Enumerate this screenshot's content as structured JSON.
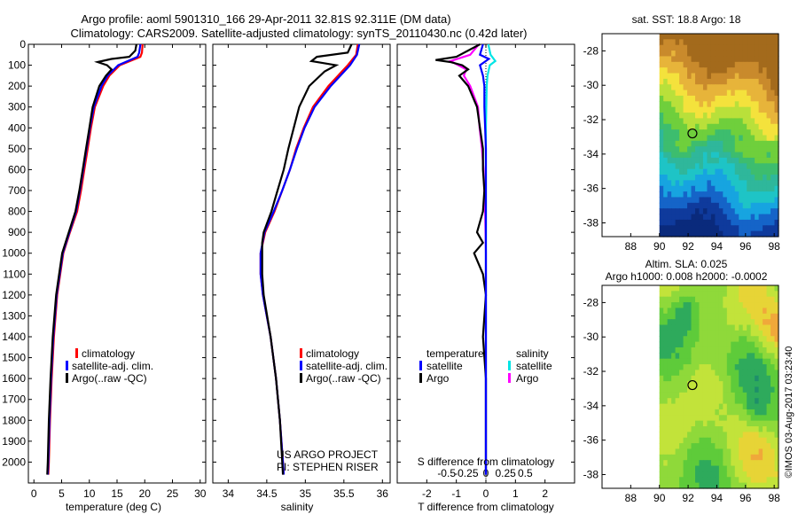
{
  "header": {
    "title_line1": "Argo profile: aoml 5901310_166 29-Apr-2011 32.81S 92.311E (DM data)",
    "title_line2": "Climatology: CARS2009. Satellite-adjusted climatology: synTS_20110430.nc (0.42d later)"
  },
  "colors": {
    "climatology": "#ff0000",
    "satellite": "#0000ff",
    "argo": "#000000",
    "salinity_satellite": "#00e5e5",
    "salinity_argo": "#ff00ff"
  },
  "chart_data": [
    {
      "id": "temperature",
      "type": "line",
      "xlabel": "temperature (deg C)",
      "xlim": [
        -1,
        31
      ],
      "xticks": [
        0,
        5,
        10,
        15,
        20,
        25,
        30
      ],
      "ylim": [
        2100,
        0
      ],
      "yticks": [
        0,
        100,
        200,
        300,
        400,
        500,
        600,
        700,
        800,
        900,
        1000,
        1100,
        1200,
        1300,
        1400,
        1500,
        1600,
        1700,
        1800,
        1900,
        2000
      ],
      "legend": [
        "climatology",
        "satellite-adj. clim.",
        "Argo(..raw -QC)"
      ],
      "series": [
        {
          "name": "climatology",
          "depth": [
            0,
            40,
            60,
            100,
            150,
            200,
            300,
            400,
            500,
            600,
            700,
            800,
            900,
            1000,
            1200,
            1400,
            1600,
            1800,
            2000,
            2060
          ],
          "values": [
            19.6,
            19.5,
            19.2,
            15.5,
            13.6,
            12.5,
            11.0,
            10.3,
            9.7,
            9.1,
            8.5,
            7.8,
            6.5,
            5.3,
            4.2,
            3.6,
            3.2,
            2.9,
            2.7,
            2.6
          ]
        },
        {
          "name": "satellite-adj. clim.",
          "depth": [
            0,
            40,
            60,
            100,
            150,
            200,
            300,
            400,
            500,
            600,
            700,
            800,
            900,
            1000,
            1200,
            1400,
            1600,
            1800,
            2000,
            2060
          ],
          "values": [
            19.2,
            19.0,
            18.7,
            15.2,
            13.3,
            12.2,
            10.8,
            10.1,
            9.5,
            8.9,
            8.3,
            7.6,
            6.4,
            5.2,
            4.1,
            3.5,
            3.1,
            2.8,
            2.6,
            2.5
          ]
        },
        {
          "name": "Argo(..raw -QC)",
          "depth": [
            0,
            30,
            60,
            70,
            85,
            100,
            120,
            150,
            200,
            300,
            400,
            500,
            600,
            700,
            800,
            900,
            1000,
            1200,
            1400,
            1600,
            1800,
            2000,
            2060
          ],
          "values": [
            18.5,
            18.3,
            17.2,
            14.0,
            11.5,
            13.2,
            14.0,
            13.0,
            11.8,
            10.6,
            10.0,
            9.4,
            8.8,
            8.2,
            7.5,
            6.3,
            5.1,
            4.0,
            3.4,
            3.0,
            2.7,
            2.5,
            2.4
          ]
        }
      ]
    },
    {
      "id": "salinity",
      "type": "line",
      "xlabel": "salinity",
      "xlim": [
        33.8,
        36.1
      ],
      "xticks": [
        34,
        34.5,
        35,
        35.5,
        36
      ],
      "xtick_labels": [
        "34",
        "34.5",
        "35",
        "35.5",
        "36"
      ],
      "ylim": [
        2100,
        0
      ],
      "legend": [
        "climatology",
        "satellite-adj. clim.",
        "Argo(..raw -QC)"
      ],
      "series": [
        {
          "name": "climatology",
          "depth": [
            0,
            50,
            100,
            200,
            300,
            400,
            500,
            600,
            700,
            800,
            900,
            1000,
            1100,
            1200,
            1400,
            1600,
            1800,
            2000,
            2060
          ],
          "values": [
            35.68,
            35.66,
            35.55,
            35.3,
            35.1,
            34.98,
            34.88,
            34.8,
            34.7,
            34.6,
            34.48,
            34.42,
            34.42,
            34.45,
            34.55,
            34.62,
            34.67,
            34.71,
            34.72
          ]
        },
        {
          "name": "satellite-adj. clim.",
          "depth": [
            0,
            50,
            100,
            200,
            300,
            400,
            500,
            600,
            700,
            800,
            900,
            1000,
            1100,
            1200,
            1400,
            1600,
            1800,
            2000,
            2060
          ],
          "values": [
            35.7,
            35.67,
            35.58,
            35.33,
            35.12,
            34.99,
            34.89,
            34.8,
            34.7,
            34.59,
            34.47,
            34.42,
            34.42,
            34.45,
            34.55,
            34.62,
            34.67,
            34.71,
            34.72
          ]
        },
        {
          "name": "Argo(..raw -QC)",
          "depth": [
            0,
            40,
            60,
            80,
            100,
            130,
            200,
            300,
            400,
            500,
            600,
            700,
            800,
            900,
            950,
            1000,
            1100,
            1200,
            1400,
            1600,
            1800,
            2000,
            2060
          ],
          "values": [
            35.6,
            35.55,
            35.15,
            35.08,
            35.4,
            35.25,
            35.05,
            34.92,
            34.85,
            34.78,
            34.72,
            34.64,
            34.56,
            34.46,
            34.44,
            34.44,
            34.44,
            34.46,
            34.55,
            34.62,
            34.67,
            34.7,
            34.71
          ]
        }
      ],
      "annotations": [
        "US ARGO PROJECT",
        "PI: STEPHEN RISER"
      ]
    },
    {
      "id": "difference",
      "type": "line",
      "xlabel": "T difference from climatology",
      "top_label": "S difference from climatology",
      "xlim": [
        -3,
        3
      ],
      "xticks": [
        -2,
        -1,
        0,
        1,
        2
      ],
      "xtick_labels": [
        "-2",
        "-1",
        "0",
        "1",
        "2"
      ],
      "top_ticks": [
        -0.5,
        -0.25,
        0,
        0.25,
        0.5
      ],
      "top_tick_labels": [
        "-0.5",
        "-0.25",
        "0",
        "0.25",
        "0.5"
      ],
      "ylim": [
        2100,
        0
      ],
      "legend_headers": [
        "temperature",
        "salinity"
      ],
      "legend": [
        "satellite",
        "Argo",
        "satellite",
        "Argo"
      ],
      "series": [
        {
          "name": "temperature satellite",
          "depth": [
            0,
            50,
            70,
            100,
            150,
            200,
            300,
            500,
            1000,
            1500,
            2000,
            2060
          ],
          "values": [
            -0.1,
            -0.2,
            0.1,
            -0.2,
            -0.1,
            -0.05,
            -0.05,
            0.0,
            0.0,
            0.0,
            0.0,
            0.0
          ]
        },
        {
          "name": "temperature Argo",
          "depth": [
            0,
            60,
            75,
            85,
            100,
            120,
            150,
            200,
            300,
            400,
            500,
            600,
            700,
            800,
            900,
            950,
            1000,
            1100,
            1200,
            1400,
            1600,
            2000,
            2060
          ],
          "values": [
            -0.2,
            -1.0,
            -1.7,
            -1.2,
            -0.8,
            -0.6,
            -0.9,
            -0.6,
            -0.3,
            -0.2,
            -0.1,
            -0.1,
            -0.05,
            -0.1,
            -0.3,
            -0.1,
            -0.4,
            -0.1,
            0.0,
            -0.1,
            0.0,
            0.0,
            0.0
          ]
        },
        {
          "name": "salinity satellite",
          "depth": [
            0,
            50,
            80,
            100,
            150,
            200,
            400,
            600,
            1000,
            1500,
            2000,
            2060
          ],
          "values": [
            0.03,
            0.06,
            0.12,
            0.05,
            0.02,
            0.01,
            0.0,
            0.0,
            0.0,
            0.0,
            0.0,
            0.0
          ]
        },
        {
          "name": "salinity Argo",
          "depth": [
            0,
            50,
            80,
            100,
            120,
            150,
            200,
            250,
            300,
            400,
            500,
            600,
            700,
            800,
            1000,
            1200,
            1500,
            2000,
            2060
          ],
          "values": [
            -0.09,
            -0.2,
            -0.45,
            -0.35,
            -0.25,
            -0.28,
            -0.2,
            -0.15,
            -0.1,
            -0.08,
            -0.05,
            -0.03,
            -0.02,
            -0.01,
            0.0,
            0.0,
            0.0,
            0.0,
            0.0
          ]
        }
      ]
    },
    {
      "id": "sst_map",
      "type": "heatmap",
      "title": "sat. SST: 18.8 Argo: 18",
      "xticks": [
        88,
        90,
        92,
        94,
        96,
        98
      ],
      "yticks": [
        -28,
        -30,
        -32,
        -34,
        -36,
        -38
      ],
      "xlim": [
        86,
        98.3
      ],
      "ylim": [
        -38.8,
        -27
      ],
      "data_xlim": [
        90,
        98.3
      ],
      "marker": {
        "lon": 92.3,
        "lat": -32.8
      },
      "colors": [
        "#a36a1c",
        "#c98a2c",
        "#e7b43a",
        "#f4e23c",
        "#b9e03a",
        "#6fcf3c",
        "#3dbd6e",
        "#2fb79b",
        "#1ec4c6",
        "#17a4e0",
        "#1564c8",
        "#0f3a9c",
        "#0a2a7c"
      ]
    },
    {
      "id": "sla_map",
      "type": "heatmap",
      "title_line1": "Altim. SLA: 0.025",
      "title_line2": "Argo h1000: 0.008 h2000: -0.0002",
      "xticks": [
        88,
        90,
        92,
        94,
        96,
        98
      ],
      "yticks": [
        -28,
        -30,
        -32,
        -34,
        -36,
        -38
      ],
      "xlim": [
        86,
        98.3
      ],
      "ylim": [
        -38.8,
        -27
      ],
      "data_xlim": [
        90,
        98.3
      ],
      "marker": {
        "lon": 92.3,
        "lat": -32.8
      },
      "colors": [
        "#1e8f6a",
        "#2eaa5c",
        "#5ecb3a",
        "#8fd93a",
        "#c2e33a",
        "#e7d436",
        "#f0a83a"
      ]
    }
  ],
  "footer": {
    "credit": "©IMOS 03-Aug-2017 03:23:40"
  }
}
